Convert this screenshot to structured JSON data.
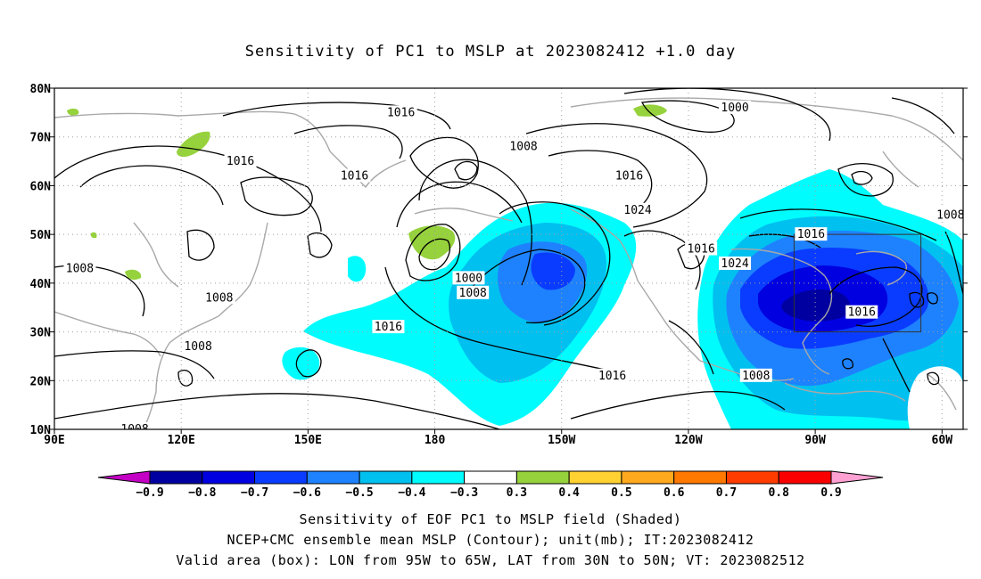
{
  "title": "Sensitivity of PC1 to MSLP at 2023082412 +1.0 day",
  "map": {
    "lon_range": [
      90,
      305
    ],
    "lat_range": [
      10,
      80
    ],
    "lat_ticks": [
      {
        "lat": 80,
        "label": "80N"
      },
      {
        "lat": 70,
        "label": "70N"
      },
      {
        "lat": 60,
        "label": "60N"
      },
      {
        "lat": 50,
        "label": "50N"
      },
      {
        "lat": 40,
        "label": "40N"
      },
      {
        "lat": 30,
        "label": "30N"
      },
      {
        "lat": 20,
        "label": "20N"
      },
      {
        "lat": 10,
        "label": "10N"
      }
    ],
    "lon_ticks": [
      {
        "lon": 90,
        "label": "90E"
      },
      {
        "lon": 120,
        "label": "120E"
      },
      {
        "lon": 150,
        "label": "150E"
      },
      {
        "lon": 180,
        "label": "180"
      },
      {
        "lon": 210,
        "label": "150W"
      },
      {
        "lon": 240,
        "label": "120W"
      },
      {
        "lon": 270,
        "label": "90W"
      },
      {
        "lon": 300,
        "label": "60W"
      }
    ],
    "valid_box": {
      "lon": [
        265,
        295
      ],
      "lat": [
        30,
        50
      ]
    },
    "contour_labels": [
      {
        "text": "1016",
        "lon": 134,
        "lat": 65
      },
      {
        "text": "1016",
        "lon": 172,
        "lat": 75
      },
      {
        "text": "1016",
        "lon": 161,
        "lat": 62
      },
      {
        "text": "1008",
        "lon": 201,
        "lat": 68
      },
      {
        "text": "1016",
        "lon": 226,
        "lat": 62
      },
      {
        "text": "1024",
        "lon": 228,
        "lat": 55
      },
      {
        "text": "1000",
        "lon": 251,
        "lat": 76
      },
      {
        "text": "1008",
        "lon": 96,
        "lat": 43
      },
      {
        "text": "1008",
        "lon": 129,
        "lat": 37
      },
      {
        "text": "1008",
        "lon": 124,
        "lat": 27
      },
      {
        "text": "1000",
        "lon": 188,
        "lat": 41
      },
      {
        "text": "1008",
        "lon": 189,
        "lat": 38
      },
      {
        "text": "1016",
        "lon": 169,
        "lat": 31
      },
      {
        "text": "1016",
        "lon": 243,
        "lat": 47
      },
      {
        "text": "1024",
        "lon": 251,
        "lat": 44
      },
      {
        "text": "1016",
        "lon": 222,
        "lat": 21
      },
      {
        "text": "1008",
        "lon": 256,
        "lat": 21
      },
      {
        "text": "1016",
        "lon": 269,
        "lat": 50
      },
      {
        "text": "1016",
        "lon": 281,
        "lat": 34
      },
      {
        "text": "1008",
        "lon": 302,
        "lat": 54
      },
      {
        "text": "1008",
        "lon": 109,
        "lat": 10
      }
    ]
  },
  "colorbar": {
    "colors": [
      "#c400c4",
      "#0000a0",
      "#0000e0",
      "#0a3cff",
      "#1e82ff",
      "#00c0f0",
      "#00fcfc",
      "#ffffff",
      "#96d23c",
      "#ffd232",
      "#ffaa1e",
      "#ff7800",
      "#ff3c00",
      "#fa0000",
      "#ffa0d2"
    ],
    "labels": [
      "−0.9",
      "−0.8",
      "−0.7",
      "−0.6",
      "−0.5",
      "−0.4",
      "−0.3",
      "0.3",
      "0.4",
      "0.5",
      "0.6",
      "0.7",
      "0.8",
      "0.9"
    ]
  },
  "caption_lines": [
    "Sensitivity of EOF PC1 to MSLP field (Shaded)",
    "NCEP+CMC ensemble mean MSLP (Contour); unit(mb); IT:2023082412",
    "Valid area (box): LON from 95W to 65W, LAT from 30N to 50N; VT: 2023082512"
  ]
}
